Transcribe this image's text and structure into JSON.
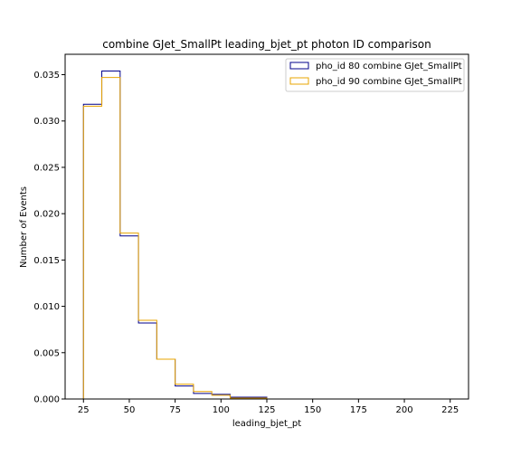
{
  "chart_data": {
    "type": "histogram-step",
    "title": "combine GJet_SmallPt leading_bjet_pt photon ID comparison",
    "xlabel": "leading_bjet_pt",
    "ylabel": "Number of Events",
    "xlim": [
      15,
      235
    ],
    "ylim": [
      0,
      0.0372
    ],
    "xticks": [
      25,
      50,
      75,
      100,
      125,
      150,
      175,
      200,
      225
    ],
    "yticks": [
      0.0,
      0.005,
      0.01,
      0.015,
      0.02,
      0.025,
      0.03,
      0.035
    ],
    "ytick_labels": [
      "0.000",
      "0.005",
      "0.010",
      "0.015",
      "0.020",
      "0.025",
      "0.030",
      "0.035"
    ],
    "bin_edges": [
      25,
      35,
      45,
      55,
      65,
      75,
      85,
      95,
      105,
      115,
      125
    ],
    "grid": false,
    "legend_position": "top-right",
    "series": [
      {
        "name": "pho_id 80 combine GJet_SmallPt",
        "color": "#00008b",
        "values": [
          0.0318,
          0.0354,
          0.0176,
          0.0082,
          0.0043,
          0.0014,
          0.0006,
          0.0005,
          0.0002,
          0.0002
        ]
      },
      {
        "name": "pho_id 90 combine GJet_SmallPt",
        "color": "#e8a400",
        "values": [
          0.0316,
          0.0347,
          0.0179,
          0.0085,
          0.0043,
          0.0016,
          0.0008,
          0.0004,
          0.0001,
          0.0001
        ]
      }
    ]
  }
}
